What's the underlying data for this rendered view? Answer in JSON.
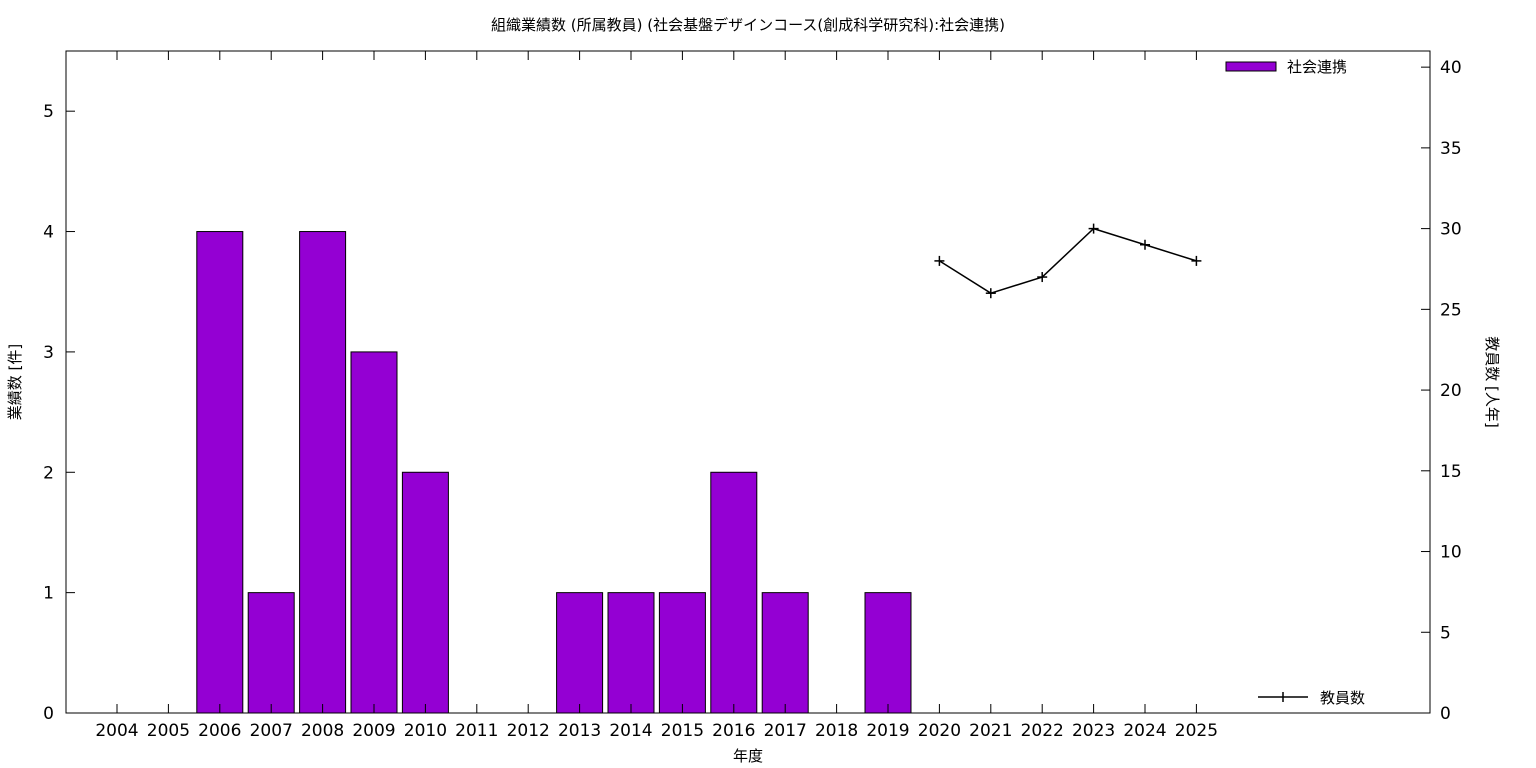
{
  "chart_data": {
    "type": "bar",
    "title": "組織業績数 (所属教員) (社会基盤デザインコース(創成科学研究科):社会連携)",
    "xlabel": "年度",
    "ylabel": "業績数 [件]",
    "y2label": "教員数 [人年]",
    "categories": [
      "2004",
      "2005",
      "2006",
      "2007",
      "2008",
      "2009",
      "2010",
      "2011",
      "2012",
      "2013",
      "2014",
      "2015",
      "2016",
      "2017",
      "2018",
      "2019",
      "2020",
      "2021",
      "2022",
      "2023",
      "2024",
      "2025"
    ],
    "ylim": [
      0,
      5.5
    ],
    "y2lim": [
      0,
      41
    ],
    "yticks": [
      0,
      1,
      2,
      3,
      4,
      5
    ],
    "y2ticks": [
      0,
      5,
      10,
      15,
      20,
      25,
      30,
      35,
      40
    ],
    "series": [
      {
        "name": "社会連携",
        "type": "bar",
        "axis": "y",
        "color": "#9400d3",
        "values": [
          0,
          0,
          4,
          1,
          4,
          3,
          2,
          0,
          0,
          1,
          1,
          1,
          2,
          1,
          0,
          1,
          null,
          null,
          null,
          null,
          null,
          null
        ]
      },
      {
        "name": "教員数",
        "type": "line",
        "axis": "y2",
        "color": "#000000",
        "values": [
          null,
          null,
          null,
          null,
          null,
          null,
          null,
          null,
          null,
          null,
          null,
          null,
          null,
          null,
          null,
          null,
          28,
          26,
          27,
          30,
          29,
          28
        ]
      }
    ],
    "legend_positions": [
      "top-right",
      "bottom-right"
    ],
    "grid": false
  }
}
